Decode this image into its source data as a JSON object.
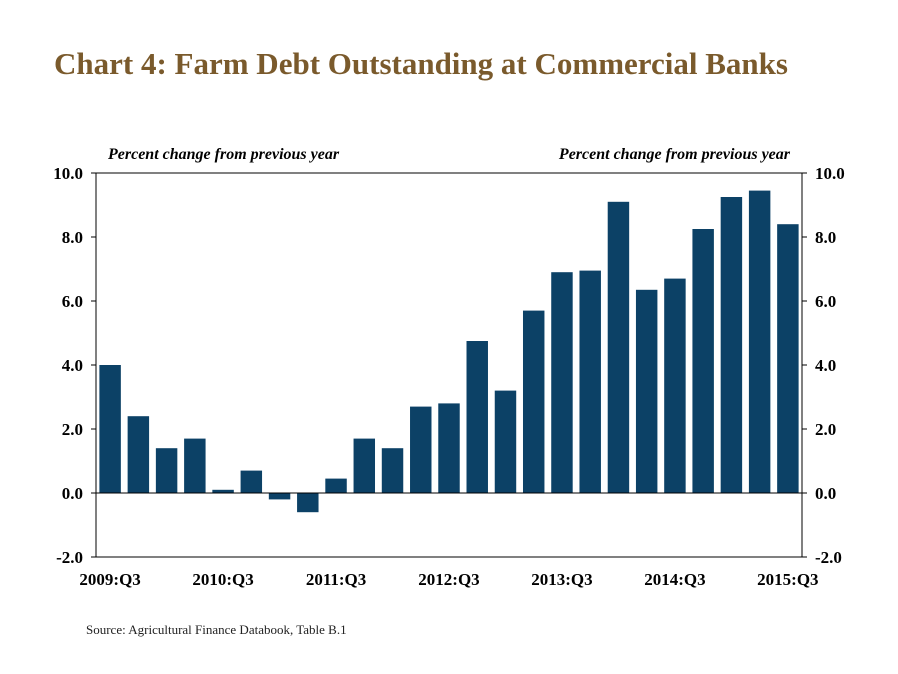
{
  "title": "Chart 4: Farm Debt Outstanding at Commercial Banks",
  "source": "Source: Agricultural Finance Databook, Table B.1",
  "colors": {
    "title": "#7a5a2c",
    "bar": "#0c4166",
    "axis": "#000000"
  },
  "chart_data": {
    "type": "bar",
    "title": "Chart 4: Farm Debt Outstanding at Commercial Banks",
    "ylabel_left": "Percent change from previous year",
    "ylabel_right": "Percent change from previous year",
    "xlabel": "",
    "ylim": [
      -2.0,
      10.0
    ],
    "y_ticks": [
      "10.0",
      "8.0",
      "6.0",
      "4.0",
      "2.0",
      "0.0",
      "-2.0"
    ],
    "y_tick_values": [
      10,
      8,
      6,
      4,
      2,
      0,
      -2
    ],
    "x_tick_labels": [
      "2009:Q3",
      "2010:Q3",
      "2011:Q3",
      "2012:Q3",
      "2013:Q3",
      "2014:Q3",
      "2015:Q3"
    ],
    "x_tick_indices": [
      0,
      4,
      8,
      12,
      16,
      20,
      24
    ],
    "grid": false,
    "series": [
      {
        "values": [
          4.0,
          2.4,
          1.4,
          1.7,
          0.1,
          0.7,
          -0.2,
          -0.6,
          0.45,
          1.7,
          1.4,
          2.7,
          2.8,
          4.75,
          3.2,
          5.7,
          6.9,
          6.95,
          9.1,
          6.35,
          6.7,
          8.25,
          9.25,
          9.45,
          8.4
        ]
      }
    ]
  }
}
